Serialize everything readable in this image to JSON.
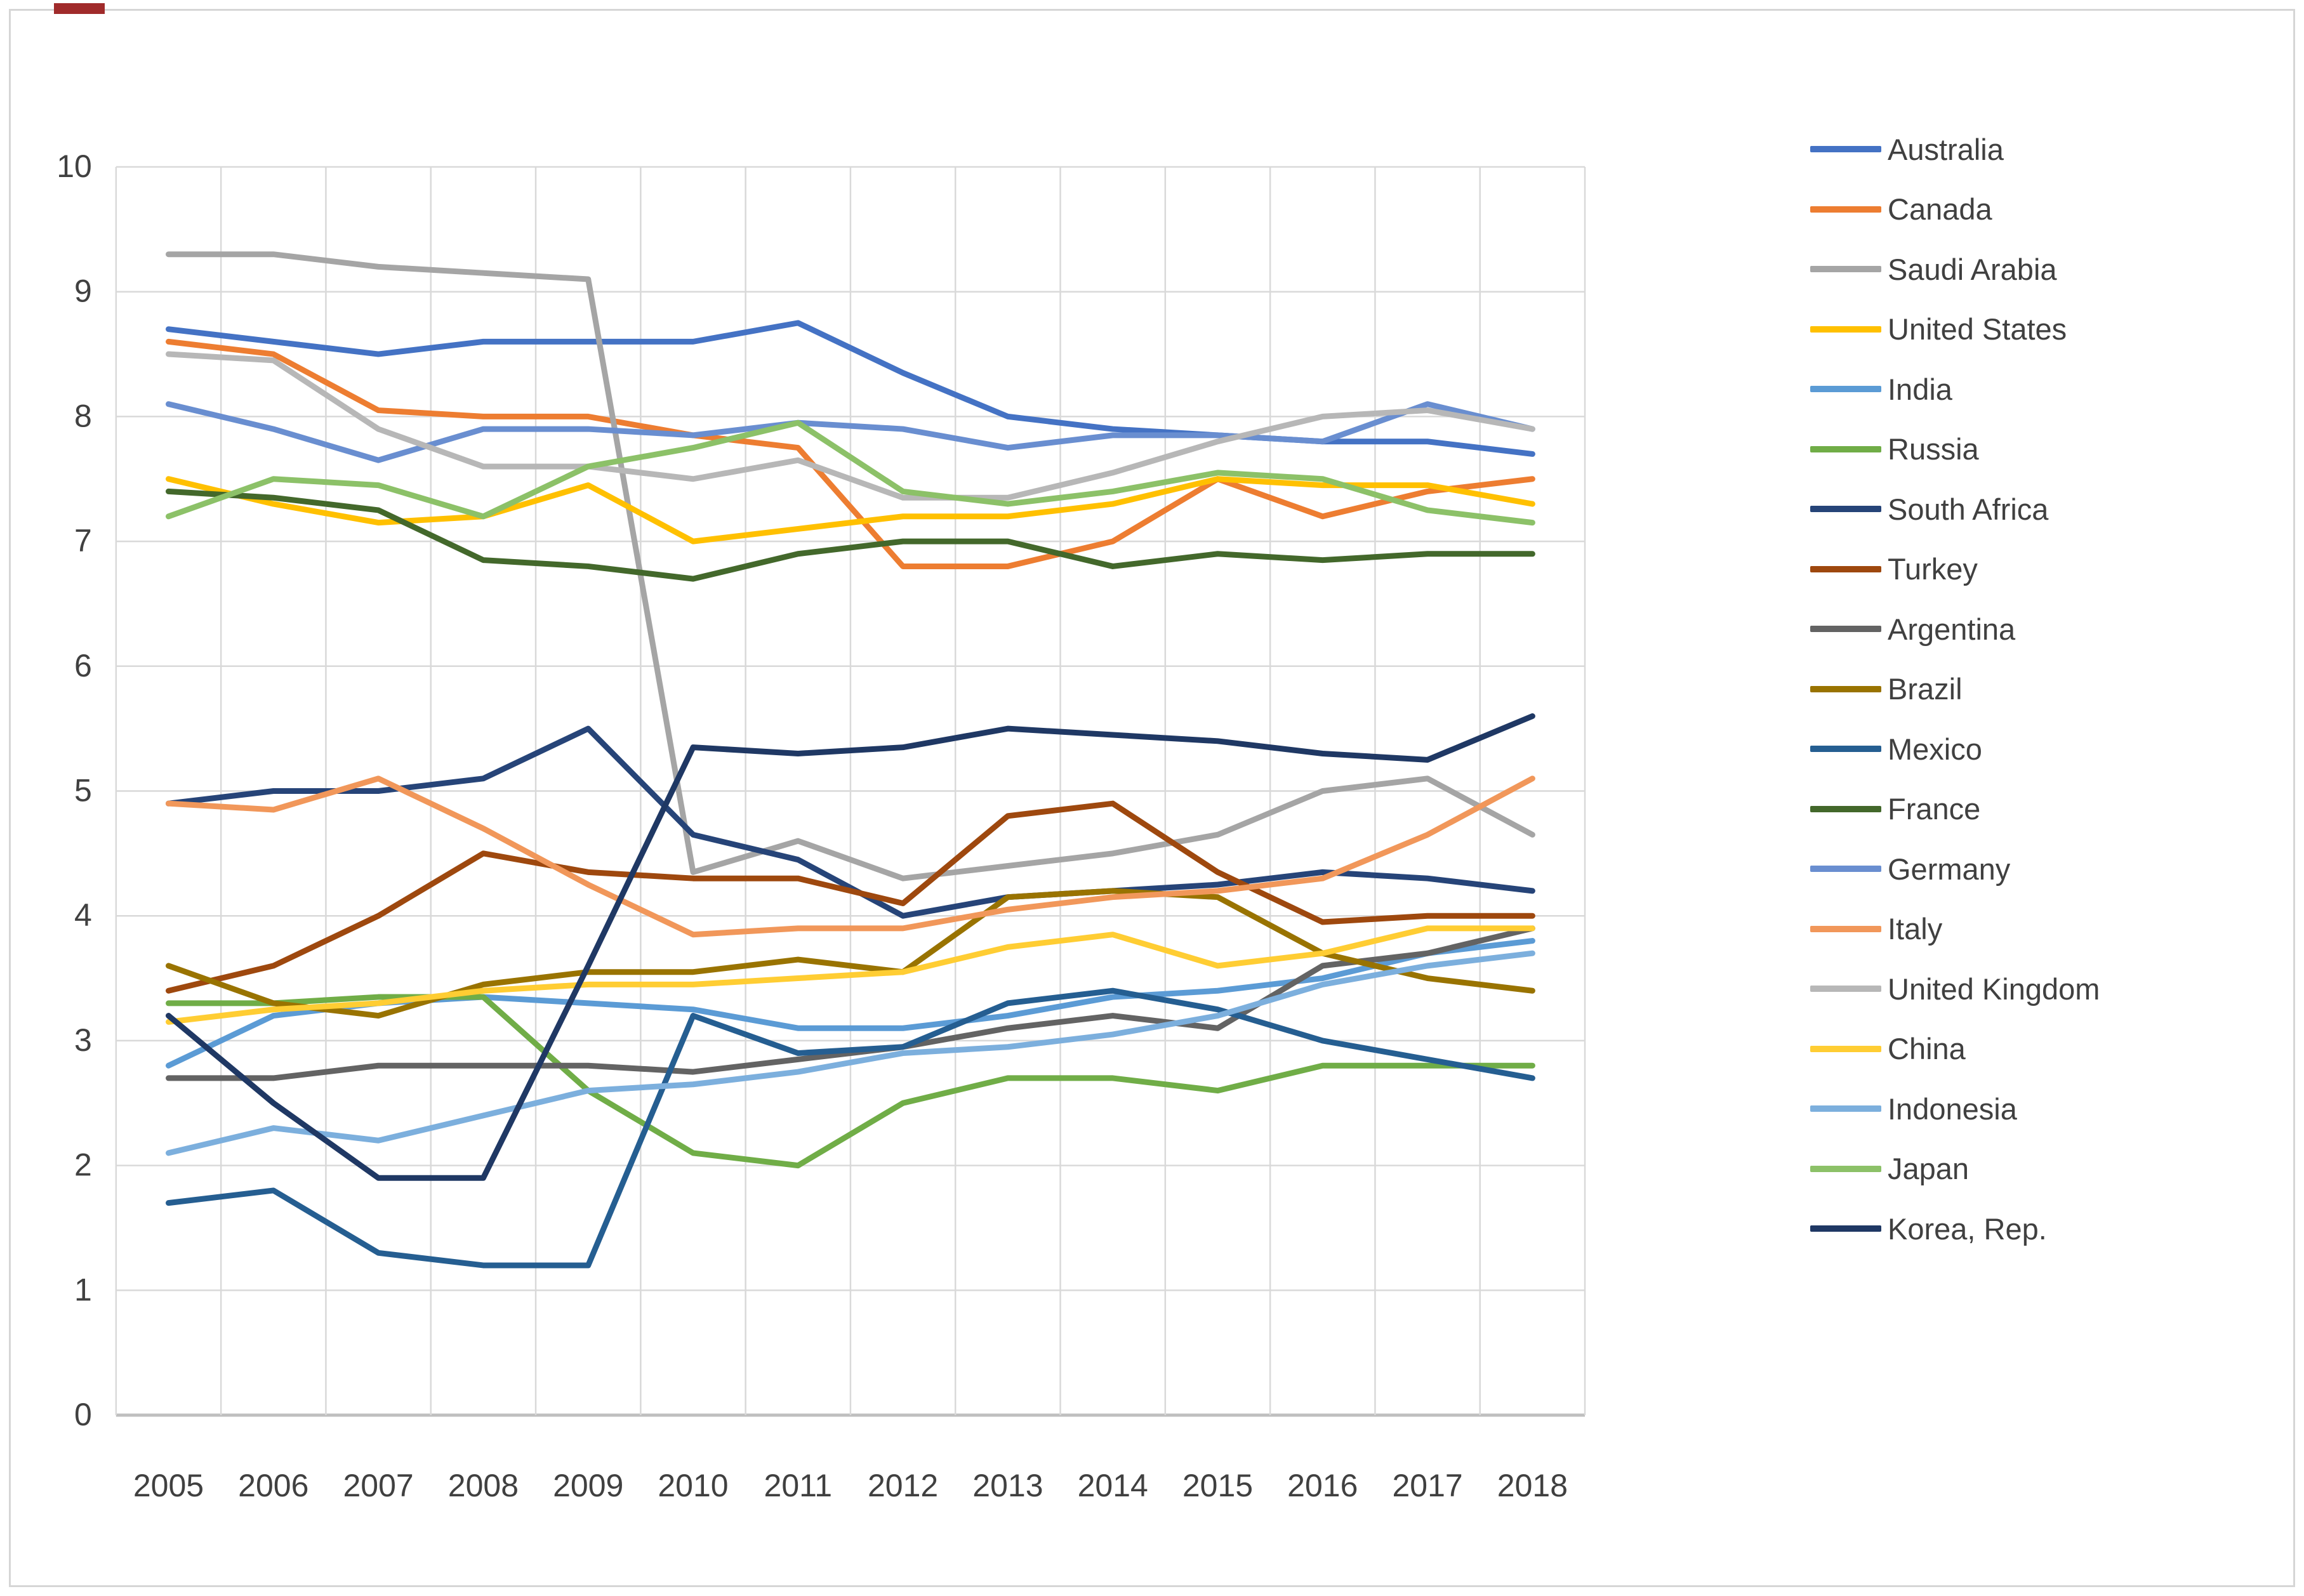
{
  "chart_data": {
    "type": "line",
    "title": "",
    "xlabel": "",
    "ylabel": "",
    "x": [
      "2005",
      "2006",
      "2007",
      "2008",
      "2009",
      "2010",
      "2011",
      "2012",
      "2013",
      "2014",
      "2015",
      "2016",
      "2017",
      "2018"
    ],
    "ylim": [
      0,
      10
    ],
    "y_ticks": [
      "0",
      "1",
      "2",
      "3",
      "4",
      "5",
      "6",
      "7",
      "8",
      "9",
      "10"
    ],
    "grid": true,
    "legend_position": "right",
    "series": [
      {
        "name": "Australia",
        "color": "#4472C4",
        "values": [
          8.7,
          8.6,
          8.5,
          8.6,
          8.6,
          8.6,
          8.75,
          8.35,
          8.0,
          7.9,
          7.85,
          7.8,
          7.8,
          7.7
        ]
      },
      {
        "name": "Canada",
        "color": "#ED7D31",
        "values": [
          8.6,
          8.5,
          8.05,
          8.0,
          8.0,
          7.85,
          7.75,
          6.8,
          6.8,
          7.0,
          7.5,
          7.2,
          7.4,
          7.5
        ]
      },
      {
        "name": "Saudi Arabia",
        "color": "#A5A5A5",
        "values": [
          9.3,
          9.3,
          9.2,
          9.15,
          9.1,
          4.35,
          4.6,
          4.3,
          4.4,
          4.5,
          4.65,
          5.0,
          5.1,
          4.65
        ]
      },
      {
        "name": "United States",
        "color": "#FFC000",
        "values": [
          7.5,
          7.3,
          7.15,
          7.2,
          7.45,
          7.0,
          7.1,
          7.2,
          7.2,
          7.3,
          7.5,
          7.45,
          7.45,
          7.3
        ]
      },
      {
        "name": "India",
        "color": "#5B9BD5",
        "values": [
          2.8,
          3.2,
          3.3,
          3.35,
          3.3,
          3.25,
          3.1,
          3.1,
          3.2,
          3.35,
          3.4,
          3.5,
          3.7,
          3.8
        ]
      },
      {
        "name": "Russia",
        "color": "#70AD47",
        "values": [
          3.3,
          3.3,
          3.35,
          3.35,
          2.6,
          2.1,
          2.0,
          2.5,
          2.7,
          2.7,
          2.6,
          2.8,
          2.8,
          2.8
        ]
      },
      {
        "name": "South Africa",
        "color": "#264478",
        "values": [
          4.9,
          5.0,
          5.0,
          5.1,
          5.5,
          4.65,
          4.45,
          4.0,
          4.15,
          4.2,
          4.25,
          4.35,
          4.3,
          4.2
        ]
      },
      {
        "name": "Turkey",
        "color": "#9E480E",
        "values": [
          3.4,
          3.6,
          4.0,
          4.5,
          4.35,
          4.3,
          4.3,
          4.1,
          4.8,
          4.9,
          4.35,
          3.95,
          4.0,
          4.0
        ]
      },
      {
        "name": "Argentina",
        "color": "#636363",
        "values": [
          2.7,
          2.7,
          2.8,
          2.8,
          2.8,
          2.75,
          2.85,
          2.95,
          3.1,
          3.2,
          3.1,
          3.6,
          3.7,
          3.9
        ]
      },
      {
        "name": "Brazil",
        "color": "#997300",
        "values": [
          3.6,
          3.3,
          3.2,
          3.45,
          3.55,
          3.55,
          3.65,
          3.55,
          4.15,
          4.2,
          4.15,
          3.7,
          3.5,
          3.4
        ]
      },
      {
        "name": "Mexico",
        "color": "#255E91",
        "values": [
          1.7,
          1.8,
          1.3,
          1.2,
          1.2,
          3.2,
          2.9,
          2.95,
          3.3,
          3.4,
          3.25,
          3.0,
          2.85,
          2.7
        ]
      },
      {
        "name": "France",
        "color": "#43682B",
        "values": [
          7.4,
          7.35,
          7.25,
          6.85,
          6.8,
          6.7,
          6.9,
          7.0,
          7.0,
          6.8,
          6.9,
          6.85,
          6.9,
          6.9
        ]
      },
      {
        "name": "Germany",
        "color": "#698ED0",
        "values": [
          8.1,
          7.9,
          7.65,
          7.9,
          7.9,
          7.85,
          7.95,
          7.9,
          7.75,
          7.85,
          7.85,
          7.8,
          8.1,
          7.9
        ]
      },
      {
        "name": "Italy",
        "color": "#F1975A",
        "values": [
          4.9,
          4.85,
          5.1,
          4.7,
          4.25,
          3.85,
          3.9,
          3.9,
          4.05,
          4.15,
          4.2,
          4.3,
          4.65,
          5.1
        ]
      },
      {
        "name": "United Kingdom",
        "color": "#B7B7B7",
        "values": [
          8.5,
          8.45,
          7.9,
          7.6,
          7.6,
          7.5,
          7.65,
          7.35,
          7.35,
          7.55,
          7.8,
          8.0,
          8.05,
          7.9
        ]
      },
      {
        "name": "China",
        "color": "#FFCD33",
        "values": [
          3.15,
          3.25,
          3.3,
          3.4,
          3.45,
          3.45,
          3.5,
          3.55,
          3.75,
          3.85,
          3.6,
          3.7,
          3.9,
          3.9
        ]
      },
      {
        "name": "Indonesia",
        "color": "#7CAFDD",
        "values": [
          2.1,
          2.3,
          2.2,
          2.4,
          2.6,
          2.65,
          2.75,
          2.9,
          2.95,
          3.05,
          3.2,
          3.45,
          3.6,
          3.7
        ]
      },
      {
        "name": "Japan",
        "color": "#8CC168",
        "values": [
          7.2,
          7.5,
          7.45,
          7.2,
          7.6,
          7.75,
          7.95,
          7.4,
          7.3,
          7.4,
          7.55,
          7.5,
          7.25,
          7.15
        ]
      },
      {
        "name": "Korea, Rep.",
        "color": "#1F3864",
        "values": [
          3.2,
          2.5,
          1.9,
          1.9,
          3.6,
          5.35,
          5.3,
          5.35,
          5.5,
          5.45,
          5.4,
          5.3,
          5.25,
          5.6
        ]
      }
    ]
  },
  "decorations": {
    "corner_mark_color": "#a02b2b"
  },
  "style": {
    "gridline_color": "#D9D9D9",
    "axis_line_color": "#BFBFBF",
    "tick_label_color": "#404040"
  }
}
